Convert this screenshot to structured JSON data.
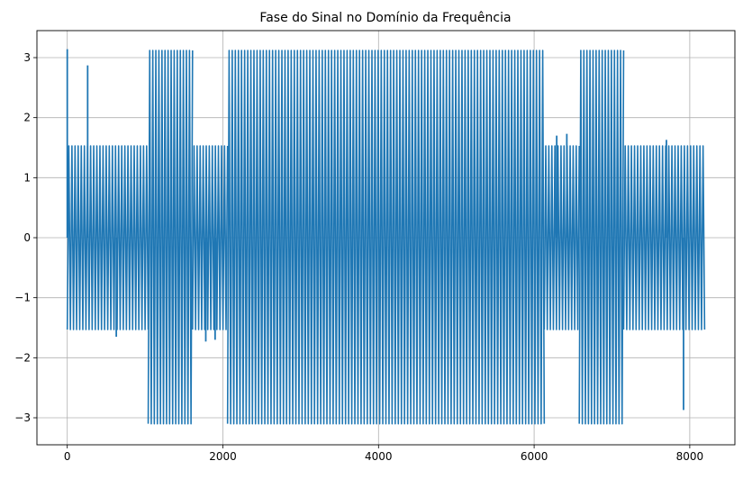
{
  "chart_data": {
    "type": "line",
    "title": "Fase do Sinal no Domínio da Frequência",
    "xlabel": "",
    "ylabel": "",
    "xlim": [
      -390,
      8580
    ],
    "ylim": [
      -3.45,
      3.45
    ],
    "grid": true,
    "line_color": "#1f77b4",
    "x_ticks": [
      {
        "value": 0,
        "label": "0"
      },
      {
        "value": 2000,
        "label": "2000"
      },
      {
        "value": 4000,
        "label": "4000"
      },
      {
        "value": 6000,
        "label": "6000"
      },
      {
        "value": 8000,
        "label": "8000"
      }
    ],
    "y_ticks": [
      {
        "value": -3,
        "label": "−3"
      },
      {
        "value": -2,
        "label": "−2"
      },
      {
        "value": -1,
        "label": "−1"
      },
      {
        "value": 0,
        "label": "0"
      },
      {
        "value": 1,
        "label": "1"
      },
      {
        "value": 2,
        "label": "2"
      },
      {
        "value": 3,
        "label": "3"
      }
    ],
    "series": [
      {
        "n_points": 8192,
        "segments": [
          {
            "x_start": 0,
            "x_end": 1040,
            "low": -1.53,
            "high": 1.53
          },
          {
            "x_start": 1040,
            "x_end": 1610,
            "low": -3.1,
            "high": 3.12
          },
          {
            "x_start": 1610,
            "x_end": 2060,
            "low": -1.53,
            "high": 1.53
          },
          {
            "x_start": 2060,
            "x_end": 6130,
            "low": -3.1,
            "high": 3.12
          },
          {
            "x_start": 6130,
            "x_end": 6580,
            "low": -1.53,
            "high": 1.53
          },
          {
            "x_start": 6580,
            "x_end": 7150,
            "low": -3.1,
            "high": 3.12
          },
          {
            "x_start": 7150,
            "x_end": 8191,
            "low": -1.53,
            "high": 1.53
          }
        ],
        "spikes": [
          {
            "x": 0,
            "y": 3.14
          },
          {
            "x": 262,
            "y": 2.87
          },
          {
            "x": 630,
            "y": -1.65
          },
          {
            "x": 1780,
            "y": -1.73
          },
          {
            "x": 1900,
            "y": -1.7
          },
          {
            "x": 6290,
            "y": 1.7
          },
          {
            "x": 6420,
            "y": 1.73
          },
          {
            "x": 7700,
            "y": 1.63
          },
          {
            "x": 7920,
            "y": -2.87
          }
        ]
      }
    ]
  }
}
